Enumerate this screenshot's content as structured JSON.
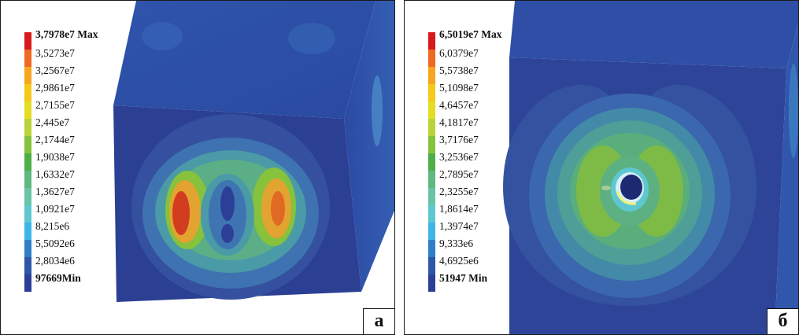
{
  "panels": [
    {
      "letter": "а",
      "legend": [
        "3,7978e7 Max",
        "3,5273e7",
        "3,2567e7",
        "2,9861e7",
        "2,7155e7",
        "2,445e7",
        "2,1744e7",
        "1,9038e7",
        "1,6332e7",
        "1,3627e7",
        "1,0921e7",
        "8,215e6",
        "5,5092e6",
        "2,8034e6",
        "97669Min"
      ],
      "field": "stress concentration at two lateral lobes around central opening"
    },
    {
      "letter": "б",
      "legend": [
        "6,5019e7 Max",
        "6,0379e7",
        "5,5738e7",
        "5,1098e7",
        "4,6457e7",
        "4,1817e7",
        "3,7176e7",
        "3,2536e7",
        "2,7895e7",
        "2,3255e7",
        "1,8614e7",
        "1,3974e7",
        "9,333e6",
        "4,6925e6",
        "51947 Min"
      ],
      "field": "stress concentration at rim of central opening"
    }
  ],
  "colors": {
    "scale": [
      "#d7191c",
      "#ef6a23",
      "#f7a61e",
      "#f7c81a",
      "#e3dd24",
      "#b8d43a",
      "#86c23b",
      "#4fae47",
      "#5fb87e",
      "#68c3a7",
      "#5ec7cf",
      "#3eb5e8",
      "#2f7fc8",
      "#2f56a8",
      "#2c3f96"
    ],
    "model": "#2f4ea6"
  }
}
